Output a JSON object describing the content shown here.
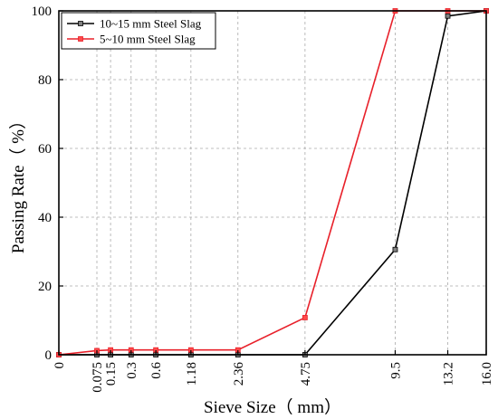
{
  "chart_data": {
    "type": "line",
    "title": "",
    "xlabel": "Sieve Size（ mm）",
    "ylabel": "Passing Rate（ %）",
    "x_scale": "categorical-sieve",
    "categories": [
      "0",
      "0.075",
      "0.15",
      "0.3",
      "0.6",
      "1.18",
      "2.36",
      "4.75",
      "9.5",
      "13.2",
      "16.0"
    ],
    "ylim": [
      0,
      100
    ],
    "yticks": [
      "0",
      "20",
      "40",
      "60",
      "80",
      "100"
    ],
    "grid": true,
    "legend_position": "top-left",
    "series": [
      {
        "name": "10~15 mm Steel Slag",
        "color": "#000000",
        "marker_color": "#808080",
        "values": [
          0,
          0,
          0,
          0,
          0,
          0,
          0,
          0,
          30.6,
          98.5,
          100
        ]
      },
      {
        "name": "5~10 mm Steel Slag",
        "color": "#e8202a",
        "marker_color": "#ff4a4a",
        "values": [
          0,
          1.2,
          1.4,
          1.4,
          1.4,
          1.4,
          1.4,
          10.8,
          100,
          100,
          100
        ]
      }
    ]
  }
}
